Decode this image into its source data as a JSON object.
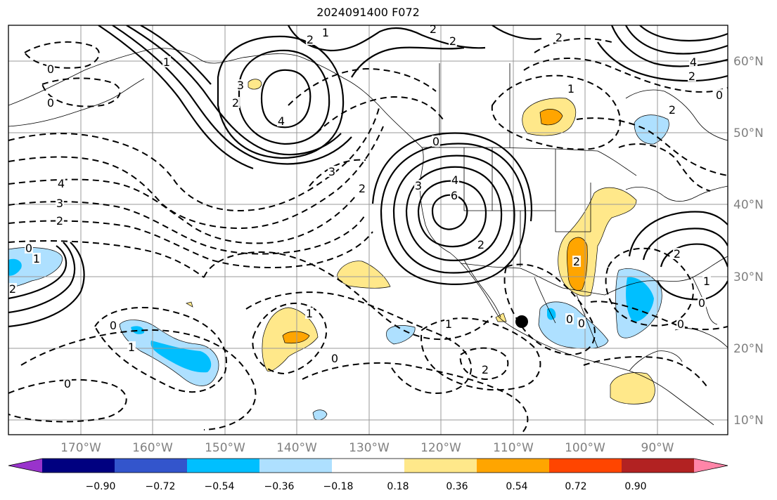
{
  "title": "2024091400 F072",
  "lat_labels": [
    "60°N",
    "50°N",
    "40°N",
    "30°N",
    "20°N",
    "10°N"
  ],
  "lon_labels": [
    "170°W",
    "160°W",
    "150°W",
    "140°W",
    "130°W",
    "120°W",
    "110°W",
    "100°W",
    "90°W"
  ],
  "colorbar": {
    "colors": [
      "#9933cc",
      "#000080",
      "#3355cc",
      "#00bfff",
      "#aee0ff",
      "#ffffff",
      "#ffe88a",
      "#ffa500",
      "#ff4500",
      "#b22222",
      "#ff85a8"
    ],
    "ticks": [
      "−0.90",
      "−0.72",
      "−0.54",
      "−0.36",
      "−0.18",
      "0.18",
      "0.36",
      "0.54",
      "0.72",
      "0.90"
    ]
  },
  "contour_labels": [
    {
      "text": "1"
    },
    {
      "text": "2"
    },
    {
      "text": "2"
    },
    {
      "text": "0"
    },
    {
      "text": "0"
    },
    {
      "text": "1"
    },
    {
      "text": "3"
    },
    {
      "text": "2"
    },
    {
      "text": "4"
    },
    {
      "text": "4"
    },
    {
      "text": "3"
    },
    {
      "text": "2"
    },
    {
      "text": "3"
    },
    {
      "text": "2"
    },
    {
      "text": "4"
    },
    {
      "text": "6"
    },
    {
      "text": "3"
    },
    {
      "text": "0"
    },
    {
      "text": "2"
    },
    {
      "text": "0"
    },
    {
      "text": "1"
    },
    {
      "text": "1"
    },
    {
      "text": "0"
    },
    {
      "text": "1"
    },
    {
      "text": "2"
    },
    {
      "text": "0"
    },
    {
      "text": "1"
    },
    {
      "text": "2"
    },
    {
      "text": "0"
    },
    {
      "text": "4"
    },
    {
      "text": "2"
    },
    {
      "text": "0"
    },
    {
      "text": "2"
    },
    {
      "text": "1"
    },
    {
      "text": "2"
    },
    {
      "text": "2"
    },
    {
      "text": "2"
    },
    {
      "text": "0"
    },
    {
      "text": "1"
    },
    {
      "text": "0"
    },
    {
      "text": "0"
    },
    {
      "text": "2"
    },
    {
      "text": "0"
    },
    {
      "text": "1"
    }
  ],
  "marker": {
    "lat": 23.5,
    "lon": -108.5
  }
}
